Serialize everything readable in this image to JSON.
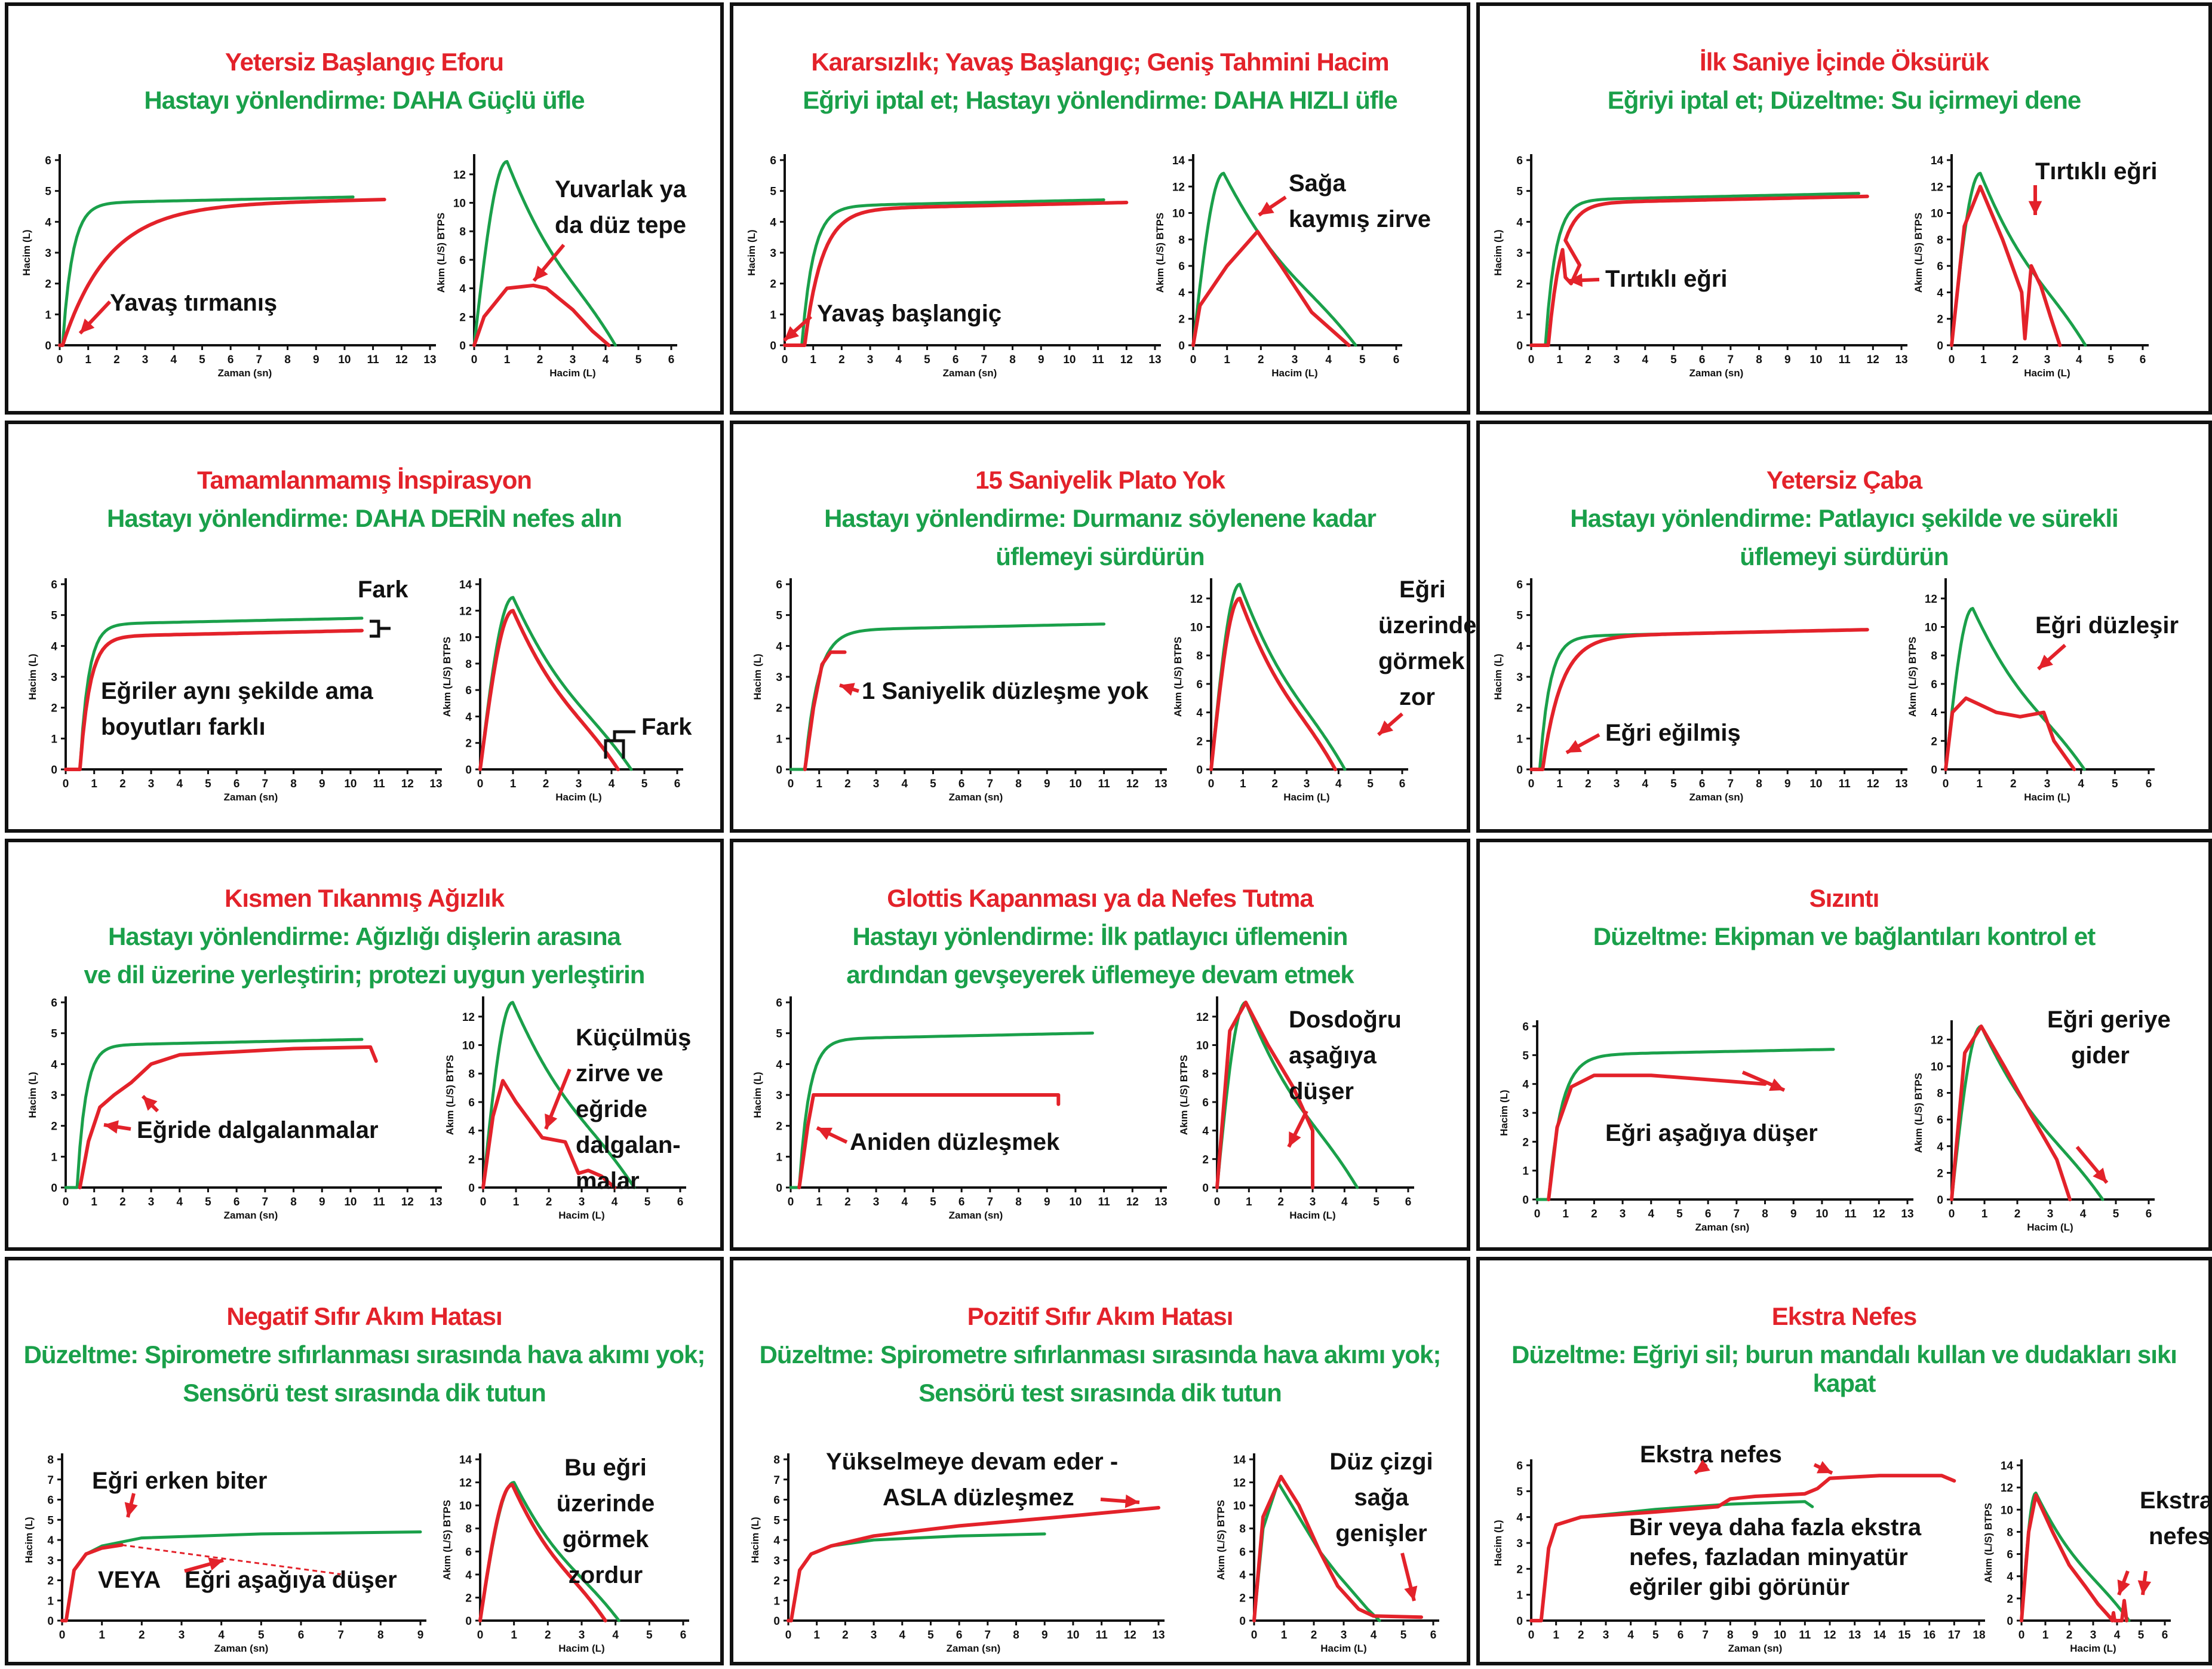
{
  "colors": {
    "red": "#e3222a",
    "green": "#1aa04a",
    "black": "#111111"
  },
  "axis_labels": {
    "volume": "Hacim (L)",
    "time": "Zaman (sn)",
    "flow": "Akım (L/S) BTPS"
  },
  "panels": [
    {
      "id": "p1",
      "title": "Yetersiz Başlangıç Eforu",
      "subtitle": [
        "Hastayı yönlendirme: DAHA Güçlü üfle"
      ],
      "annotations": [
        "Yavaş tırmanış",
        "Yuvarlak ya",
        "da düz tepe"
      ]
    },
    {
      "id": "p2",
      "title": "Kararsızlık; Yavaş Başlangıç; Geniş Tahmini Hacim",
      "subtitle": [
        "Eğriyi iptal et; Hastayı yönlendirme: DAHA HIZLI üfle"
      ],
      "annotations": [
        "Yavaş başlangiç",
        "Sağa",
        "kaymış zirve"
      ]
    },
    {
      "id": "p3",
      "title": "İlk Saniye İçinde Öksürük",
      "subtitle": [
        "Eğriyi iptal et; Düzeltme: Su içirmeyi dene"
      ],
      "annotations": [
        "Tırtıklı eğri",
        "Tırtıklı eğri"
      ]
    },
    {
      "id": "p4",
      "title": "Tamamlanmamış İnspirasyon",
      "subtitle": [
        "Hastayı yönlendirme: DAHA DERİN nefes alın"
      ],
      "annotations": [
        "Fark",
        "Eğriler aynı şekilde ama",
        "boyutları farklı",
        "Fark"
      ]
    },
    {
      "id": "p5",
      "title": "15 Saniyelik Plato Yok",
      "subtitle": [
        "Hastayı yönlendirme: Durmanız söylenene kadar",
        "üflemeyi sürdürün"
      ],
      "annotations": [
        "1 Saniyelik düzleşme yok",
        "Eğri",
        "üzerinde",
        "görmek",
        "zor"
      ]
    },
    {
      "id": "p6",
      "title": "Yetersiz Çaba",
      "subtitle": [
        "Hastayı yönlendirme: Patlayıcı şekilde ve sürekli",
        "üflemeyi sürdürün"
      ],
      "annotations": [
        "Eğri eğilmiş",
        "Eğri düzleşir"
      ]
    },
    {
      "id": "p7",
      "title": "Kısmen Tıkanmış Ağızlık",
      "subtitle": [
        "Hastayı yönlendirme: Ağızlığı dişlerin arasına",
        "ve dil üzerine yerleştirin; protezi uygun yerleştirin"
      ],
      "annotations": [
        "Eğride dalgalanmalar",
        "Küçülmüş",
        "zirve ve",
        "eğride",
        "dalgalan-",
        "malar"
      ]
    },
    {
      "id": "p8",
      "title": "Glottis Kapanması ya da Nefes Tutma",
      "subtitle": [
        "Hastayı yönlendirme: İlk patlayıcı üflemenin",
        "ardından gevşeyerek üflemeye devam etmek"
      ],
      "annotations": [
        "Aniden düzleşmek",
        "Dosdoğru",
        "aşağıya",
        "düşer"
      ]
    },
    {
      "id": "p9",
      "title": "Sızıntı",
      "subtitle": [
        "Düzeltme: Ekipman ve bağlantıları kontrol et"
      ],
      "annotations": [
        "Eğri aşağıya düşer",
        "Eğri geriye",
        "gider"
      ]
    },
    {
      "id": "p10",
      "title": "Negatif Sıfır Akım Hatası",
      "subtitle": [
        "Düzeltme: Spirometre sıfırlanması sırasında hava akımı yok;",
        "Sensörü test sırasında dik tutun"
      ],
      "annotations": [
        "Eğri erken biter",
        "VEYA",
        "Eğri aşağıya düşer",
        "Bu eğri",
        "üzerinde",
        "görmek",
        "zordur"
      ]
    },
    {
      "id": "p11",
      "title": "Pozitif Sıfır Akım Hatası",
      "subtitle": [
        "Düzeltme: Spirometre sıfırlanması sırasında hava akımı yok;",
        "Sensörü test sırasında dik tutun"
      ],
      "annotations": [
        "Yükselmeye devam eder -",
        "ASLA düzleşmez",
        "Düz çizgi",
        "sağa",
        "genişler"
      ]
    },
    {
      "id": "p12",
      "title": "Ekstra Nefes",
      "subtitle": [
        "Düzeltme: Eğriyi sil; burun mandalı  kullan ve dudakları sıkı kapat"
      ],
      "annotations": [
        "Ekstra nefes",
        "Bir veya daha fazla ekstra",
        "nefes, fazladan minyatür",
        "eğriler gibi görünür",
        "Ekstra",
        "nefes"
      ]
    }
  ]
}
